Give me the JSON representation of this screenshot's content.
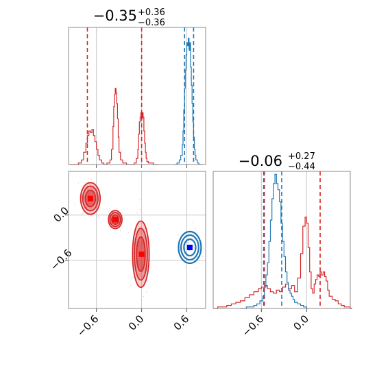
{
  "chart_data": {
    "type": "corner",
    "colors": {
      "red": "#d62728",
      "blue": "#1f77b4",
      "red_marker": "#ff0000",
      "blue_marker": "#0000ff"
    },
    "panels": [
      {
        "id": "hist_param1",
        "type": "histogram",
        "title": {
          "main": "−0.35",
          "sup": "+0.36",
          "sub": "−0.36"
        },
        "xlim": [
          -0.97,
          0.85
        ],
        "xticks": [
          -0.6,
          0.0,
          0.6
        ],
        "series": [
          {
            "color": "red",
            "x": [
              -0.96,
              -0.92,
              -0.88,
              -0.84,
              -0.8,
              -0.77,
              -0.74,
              -0.72,
              -0.7,
              -0.68,
              -0.66,
              -0.64,
              -0.62,
              -0.6,
              -0.58,
              -0.56,
              -0.53,
              -0.5,
              -0.46,
              -0.42,
              -0.4,
              -0.38,
              -0.37,
              -0.36,
              -0.35,
              -0.34,
              -0.33,
              -0.32,
              -0.31,
              -0.3,
              -0.28,
              -0.25,
              -0.2,
              -0.15,
              -0.1,
              -0.07,
              -0.05,
              -0.04,
              -0.03,
              -0.02,
              -0.01,
              0.0,
              0.01,
              0.02,
              0.03,
              0.04,
              0.05,
              0.06,
              0.07,
              0.09,
              0.12,
              0.16,
              0.2
            ],
            "y": [
              0,
              0,
              0,
              0.01,
              0.03,
              0.08,
              0.14,
              0.19,
              0.22,
              0.21,
              0.23,
              0.19,
              0.15,
              0.1,
              0.06,
              0.03,
              0.01,
              0,
              0.01,
              0.03,
              0.1,
              0.25,
              0.38,
              0.46,
              0.5,
              0.47,
              0.4,
              0.3,
              0.18,
              0.08,
              0.03,
              0.01,
              0,
              0,
              0.01,
              0.04,
              0.1,
              0.2,
              0.28,
              0.31,
              0.34,
              0.3,
              0.34,
              0.31,
              0.22,
              0.14,
              0.08,
              0.04,
              0.02,
              0.01,
              0.01,
              0,
              0
            ]
          },
          {
            "color": "blue",
            "x": [
              0.44,
              0.47,
              0.5,
              0.52,
              0.54,
              0.55,
              0.56,
              0.57,
              0.58,
              0.59,
              0.6,
              0.61,
              0.62,
              0.63,
              0.64,
              0.65,
              0.66,
              0.67,
              0.68,
              0.69,
              0.7,
              0.71,
              0.72,
              0.74,
              0.76,
              0.78
            ],
            "y": [
              0,
              0.01,
              0.03,
              0.06,
              0.13,
              0.22,
              0.36,
              0.5,
              0.62,
              0.72,
              0.8,
              0.78,
              0.83,
              0.75,
              0.8,
              0.64,
              0.52,
              0.4,
              0.28,
              0.18,
              0.1,
              0.06,
              0.03,
              0.01,
              0,
              0
            ]
          }
        ],
        "vlines": [
          {
            "color": "red",
            "x": [
              -0.72,
              0.0
            ]
          },
          {
            "color": "blue",
            "x": [
              0.57,
              0.69
            ]
          }
        ]
      },
      {
        "id": "contour_param1_param2",
        "type": "contour2d",
        "xlim": [
          -0.97,
          0.85
        ],
        "ylim": [
          -1.24,
          0.58
        ],
        "xticks": [
          -0.6,
          0.0,
          0.6
        ],
        "yticks": [
          -0.6,
          0.0
        ],
        "blobs": [
          {
            "color": "red",
            "cx": -0.68,
            "cy": 0.22,
            "rx": 0.13,
            "ry": 0.21,
            "marker": [
              -0.68,
              0.22
            ]
          },
          {
            "color": "red",
            "cx": -0.35,
            "cy": -0.06,
            "rx": 0.09,
            "ry": 0.12,
            "marker": [
              -0.35,
              -0.06
            ]
          },
          {
            "color": "red",
            "cx": -0.01,
            "cy": -0.52,
            "rx": 0.11,
            "ry": 0.44,
            "marker": [
              0.0,
              -0.52
            ]
          },
          {
            "color": "blue",
            "cx": 0.64,
            "cy": -0.43,
            "rx": 0.15,
            "ry": 0.21,
            "marker": [
              0.64,
              -0.43
            ]
          }
        ]
      },
      {
        "id": "hist_param2",
        "type": "histogram",
        "title": {
          "main": "−0.06",
          "sup": "+0.27",
          "sub": "−0.44"
        },
        "xlim": [
          -1.24,
          0.58
        ],
        "xticks": [
          -0.6,
          0.0
        ],
        "series": [
          {
            "color": "red",
            "x": [
              -1.24,
              -1.18,
              -1.12,
              -1.06,
              -1.0,
              -0.94,
              -0.88,
              -0.82,
              -0.76,
              -0.7,
              -0.64,
              -0.6,
              -0.56,
              -0.52,
              -0.48,
              -0.44,
              -0.4,
              -0.36,
              -0.32,
              -0.28,
              -0.24,
              -0.2,
              -0.16,
              -0.12,
              -0.08,
              -0.05,
              -0.02,
              0.0,
              0.02,
              0.04,
              0.06,
              0.08,
              0.1,
              0.12,
              0.14,
              0.16,
              0.18,
              0.2,
              0.22,
              0.24,
              0.26,
              0.28,
              0.3,
              0.34,
              0.38,
              0.42,
              0.46,
              0.5,
              0.54,
              0.58
            ],
            "y": [
              0,
              0.01,
              0.01,
              0.02,
              0.03,
              0.04,
              0.05,
              0.07,
              0.09,
              0.11,
              0.13,
              0.14,
              0.15,
              0.13,
              0.11,
              0.1,
              0.12,
              0.11,
              0.14,
              0.16,
              0.13,
              0.15,
              0.11,
              0.2,
              0.36,
              0.54,
              0.6,
              0.56,
              0.4,
              0.24,
              0.13,
              0.1,
              0.16,
              0.19,
              0.22,
              0.21,
              0.24,
              0.22,
              0.24,
              0.21,
              0.18,
              0.12,
              0.08,
              0.06,
              0.05,
              0.03,
              0.02,
              0.01,
              0.01,
              0
            ]
          },
          {
            "color": "blue",
            "x": [
              -0.88,
              -0.8,
              -0.74,
              -0.7,
              -0.66,
              -0.62,
              -0.58,
              -0.56,
              -0.54,
              -0.52,
              -0.5,
              -0.48,
              -0.46,
              -0.44,
              -0.42,
              -0.4,
              -0.38,
              -0.36,
              -0.34,
              -0.32,
              -0.3,
              -0.28,
              -0.26,
              -0.24,
              -0.22,
              -0.2,
              -0.18,
              -0.16,
              -0.12,
              -0.08,
              -0.04,
              0.0
            ],
            "y": [
              0,
              0.01,
              0.01,
              0.02,
              0.03,
              0.05,
              0.08,
              0.14,
              0.22,
              0.3,
              0.44,
              0.58,
              0.72,
              0.82,
              0.88,
              0.82,
              0.78,
              0.7,
              0.56,
              0.44,
              0.34,
              0.24,
              0.17,
              0.12,
              0.1,
              0.08,
              0.06,
              0.04,
              0.03,
              0.02,
              0.01,
              0
            ]
          }
        ],
        "vlines": [
          {
            "color": "red",
            "x": [
              -0.56,
              0.18
            ]
          },
          {
            "color": "blue",
            "x": [
              -0.57,
              -0.33
            ]
          }
        ]
      }
    ]
  }
}
